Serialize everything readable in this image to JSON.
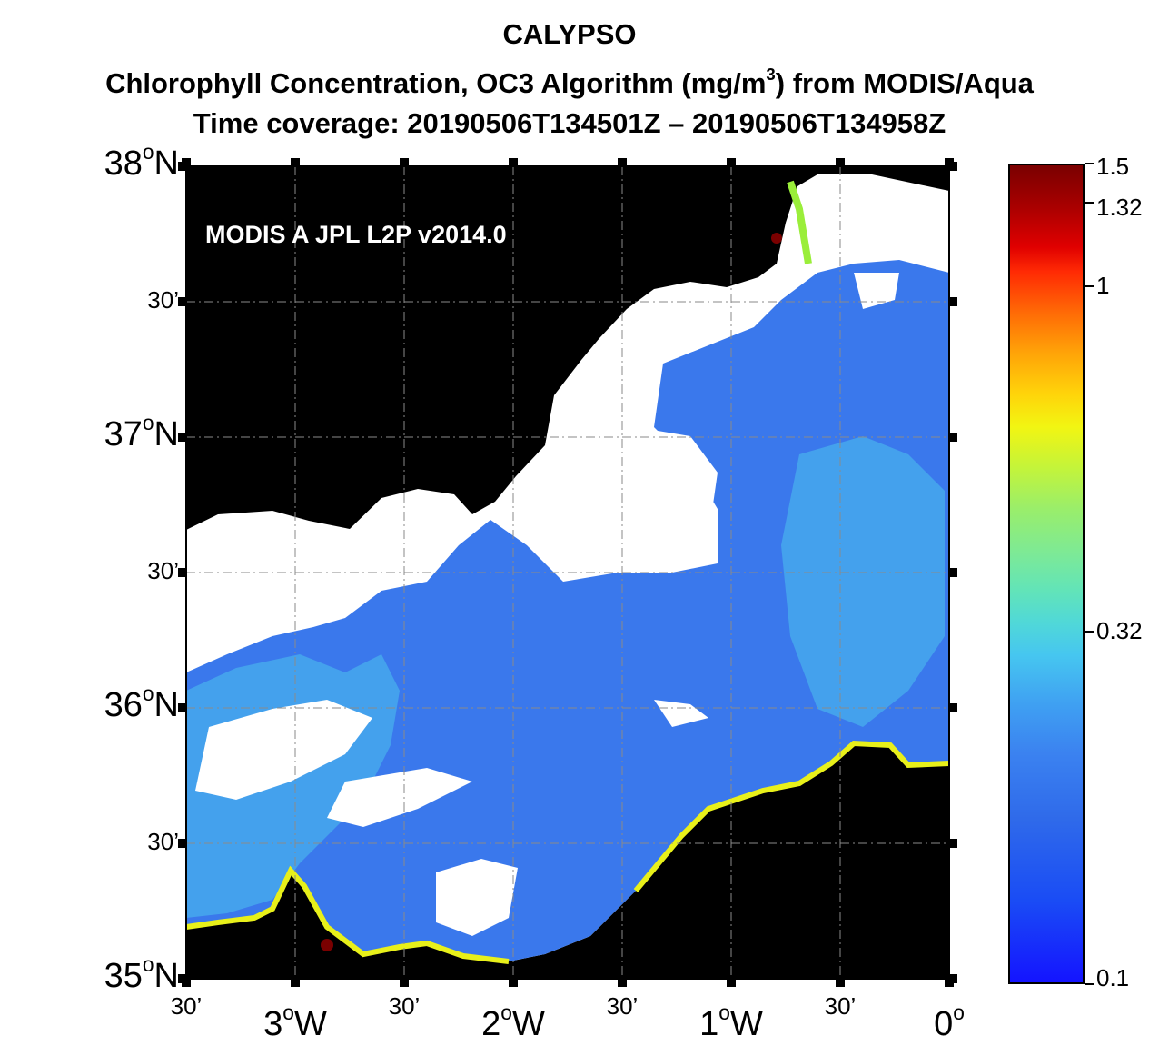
{
  "title": {
    "line1": "CALYPSO",
    "line2_prefix": "Chlorophyll Concentration, OC3 Algorithm (mg/m",
    "line2_sup": "3",
    "line2_suffix": ") from MODIS/Aqua",
    "line3": "Time coverage: 20190506T134501Z  –  20190506T134958Z"
  },
  "map": {
    "inset_label": "MODIS A JPL L2P v2014.0",
    "extent": {
      "lon": [
        -3.5,
        0.0
      ],
      "lat": [
        35.0,
        38.0
      ]
    },
    "colors": {
      "land": "#000000",
      "cloud": "#ffffff",
      "ocean_base": "#3a78ec",
      "frame": "#000000"
    },
    "lat_labels": [
      {
        "deg": "38",
        "sup": "o",
        "suffix": "N",
        "size": "big"
      },
      {
        "text": "30’",
        "size": "small"
      },
      {
        "deg": "37",
        "sup": "o",
        "suffix": "N",
        "size": "big"
      },
      {
        "text": "30’",
        "size": "small"
      },
      {
        "deg": "36",
        "sup": "o",
        "suffix": "N",
        "size": "big"
      },
      {
        "text": "30’",
        "size": "small"
      },
      {
        "deg": "35",
        "sup": "o",
        "suffix": "N",
        "size": "big"
      }
    ],
    "lon_labels": [
      {
        "text": "30’",
        "size": "small"
      },
      {
        "deg": "3",
        "sup": "o",
        "suffix": "W",
        "size": "big"
      },
      {
        "text": "30’",
        "size": "small"
      },
      {
        "deg": "2",
        "sup": "o",
        "suffix": "W",
        "size": "big"
      },
      {
        "text": "30’",
        "size": "small"
      },
      {
        "deg": "1",
        "sup": "o",
        "suffix": "W",
        "size": "big"
      },
      {
        "text": "30’",
        "size": "small"
      },
      {
        "deg": "0",
        "sup": "o",
        "suffix": "",
        "size": "big"
      }
    ]
  },
  "colorbar": {
    "range": [
      0.1,
      1.5
    ],
    "scale": "log",
    "tick_labels": [
      "1.5",
      "1.32",
      "1",
      "0.32",
      "0.1"
    ],
    "tick_values": [
      1.5,
      1.32,
      1.0,
      0.32,
      0.1
    ]
  }
}
